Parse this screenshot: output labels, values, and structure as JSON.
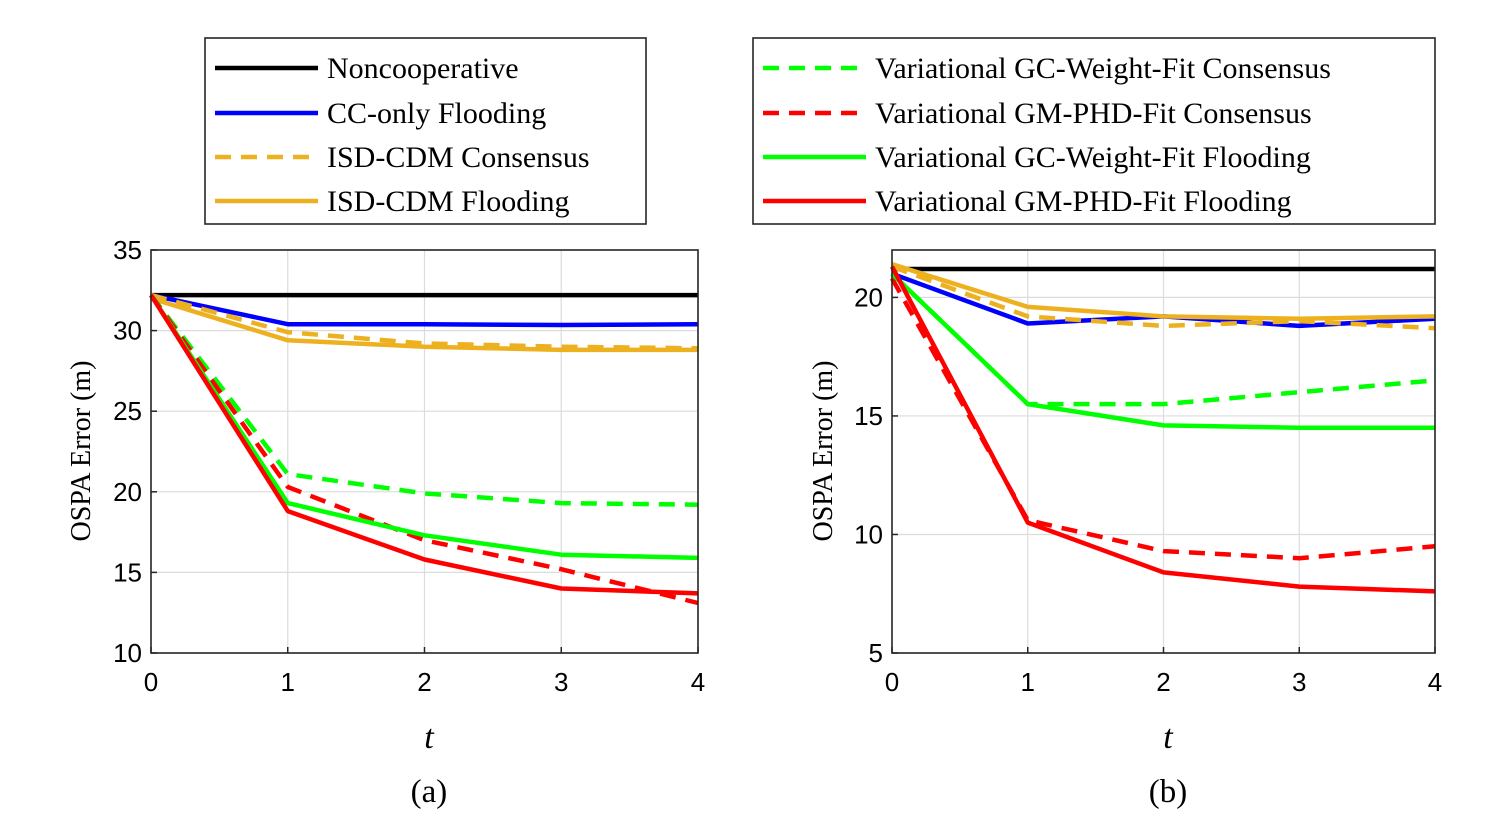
{
  "legend_left": [
    {
      "label": "Noncooperative",
      "color": "#000000",
      "dash": false
    },
    {
      "label": "CC-only Flooding",
      "color": "#0000ff",
      "dash": false
    },
    {
      "label": "ISD-CDM Consensus",
      "color": "#edb120",
      "dash": true
    },
    {
      "label": "ISD-CDM Flooding",
      "color": "#edb120",
      "dash": false
    }
  ],
  "legend_right": [
    {
      "label": "Variational GC-Weight-Fit Consensus",
      "color": "#00ff00",
      "dash": true
    },
    {
      "label": "Variational GM-PHD-Fit Consensus",
      "color": "#ff0000",
      "dash": true
    },
    {
      "label": "Variational GC-Weight-Fit Flooding",
      "color": "#00ff00",
      "dash": false
    },
    {
      "label": "Variational GM-PHD-Fit Flooding",
      "color": "#ff0000",
      "dash": false
    }
  ],
  "chart_data": [
    {
      "type": "line",
      "caption": "(a)",
      "xlabel": "t",
      "ylabel": "OSPA Error (m)",
      "x": [
        0,
        1,
        2,
        3,
        4
      ],
      "xlim": [
        0,
        4
      ],
      "ylim": [
        10,
        35
      ],
      "xticks": [
        0,
        1,
        2,
        3,
        4
      ],
      "yticks": [
        10,
        15,
        20,
        25,
        30,
        35
      ],
      "grid": true,
      "series": [
        {
          "name": "Noncooperative",
          "color": "#000000",
          "dash": false,
          "values": [
            32.2,
            32.2,
            32.2,
            32.2,
            32.2
          ]
        },
        {
          "name": "CC-only Flooding",
          "color": "#0000ff",
          "dash": false,
          "values": [
            32.2,
            30.4,
            30.4,
            30.35,
            30.4
          ]
        },
        {
          "name": "ISD-CDM Consensus",
          "color": "#edb120",
          "dash": true,
          "values": [
            32.2,
            29.9,
            29.2,
            29.0,
            28.9
          ]
        },
        {
          "name": "ISD-CDM Flooding",
          "color": "#edb120",
          "dash": false,
          "values": [
            32.0,
            29.4,
            29.0,
            28.8,
            28.8
          ]
        },
        {
          "name": "Variational GC-Weight-Fit Consensus",
          "color": "#00ff00",
          "dash": true,
          "values": [
            32.2,
            21.1,
            19.9,
            19.3,
            19.2
          ]
        },
        {
          "name": "Variational GM-PHD-Fit Consensus",
          "color": "#ff0000",
          "dash": true,
          "values": [
            32.2,
            20.3,
            17.0,
            15.2,
            13.1
          ]
        },
        {
          "name": "Variational GC-Weight-Fit Flooding",
          "color": "#00ff00",
          "dash": false,
          "values": [
            32.2,
            19.3,
            17.3,
            16.1,
            15.9
          ]
        },
        {
          "name": "Variational GM-PHD-Fit Flooding",
          "color": "#ff0000",
          "dash": false,
          "values": [
            32.2,
            18.8,
            15.8,
            14.0,
            13.7
          ]
        }
      ]
    },
    {
      "type": "line",
      "caption": "(b)",
      "xlabel": "t",
      "ylabel": "OSPA Error (m)",
      "x": [
        0,
        1,
        2,
        3,
        4
      ],
      "xlim": [
        0,
        4
      ],
      "ylim": [
        5,
        22
      ],
      "xticks": [
        0,
        1,
        2,
        3,
        4
      ],
      "yticks": [
        5,
        10,
        15,
        20
      ],
      "grid": true,
      "series": [
        {
          "name": "Noncooperative",
          "color": "#000000",
          "dash": false,
          "values": [
            21.2,
            21.2,
            21.2,
            21.2,
            21.2
          ]
        },
        {
          "name": "CC-only Flooding",
          "color": "#0000ff",
          "dash": false,
          "values": [
            21.0,
            18.9,
            19.2,
            18.8,
            19.1
          ]
        },
        {
          "name": "ISD-CDM Consensus",
          "color": "#edb120",
          "dash": true,
          "values": [
            21.3,
            19.2,
            18.8,
            19.0,
            18.7
          ]
        },
        {
          "name": "ISD-CDM Flooding",
          "color": "#edb120",
          "dash": false,
          "values": [
            21.4,
            19.6,
            19.2,
            19.1,
            19.2
          ]
        },
        {
          "name": "Variational GC-Weight-Fit Consensus",
          "color": "#00ff00",
          "dash": true,
          "values": [
            21.0,
            15.5,
            15.5,
            16.0,
            16.5
          ]
        },
        {
          "name": "Variational GM-PHD-Fit Consensus",
          "color": "#ff0000",
          "dash": true,
          "values": [
            20.8,
            10.6,
            9.3,
            9.0,
            9.5
          ]
        },
        {
          "name": "Variational GC-Weight-Fit Flooding",
          "color": "#00ff00",
          "dash": false,
          "values": [
            21.0,
            15.5,
            14.6,
            14.5,
            14.5
          ]
        },
        {
          "name": "Variational GM-PHD-Fit Flooding",
          "color": "#ff0000",
          "dash": false,
          "values": [
            21.3,
            10.5,
            8.4,
            7.8,
            7.6
          ]
        }
      ]
    }
  ]
}
